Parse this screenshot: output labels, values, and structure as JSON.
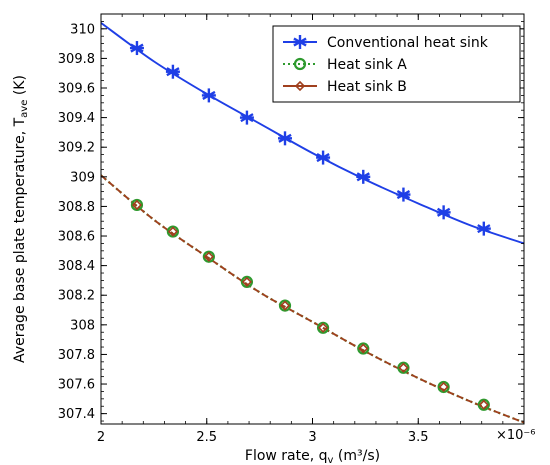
{
  "chart_data": {
    "type": "line",
    "xlabel": "Flow rate, q",
    "xlabel_sub": "v",
    "xlabel_units": " (m³/s)",
    "ylabel": "Average base plate temperature, T",
    "ylabel_sub": "ave",
    "ylabel_units": " (K)",
    "x_exponent_label": "×10⁻⁶",
    "xlim": [
      2.0,
      4.0
    ],
    "ylim": [
      307.33,
      310.1
    ],
    "x_ticks": [
      "2",
      "2.5",
      "3",
      "3.5"
    ],
    "x_tick_values": [
      2.0,
      2.5,
      3.0,
      3.5
    ],
    "y_ticks": [
      "307.4",
      "307.6",
      "307.8",
      "308",
      "308.2",
      "308.4",
      "308.6",
      "308.8",
      "309",
      "309.2",
      "309.4",
      "309.6",
      "309.8",
      "310"
    ],
    "y_tick_values": [
      307.4,
      307.6,
      307.8,
      308.0,
      308.2,
      308.4,
      308.6,
      308.8,
      309.0,
      309.2,
      309.4,
      309.6,
      309.8,
      310.0
    ],
    "grid": false,
    "legend_position": "top-right",
    "series": [
      {
        "name": "Conventional heat sink",
        "color": "#1f3fe6",
        "line": "solid",
        "marker": "asterisk",
        "x": [
          2.0,
          2.25,
          2.5,
          2.75,
          3.0,
          3.25,
          3.5,
          3.75,
          4.0
        ],
        "y": [
          310.04,
          309.78,
          309.56,
          309.36,
          309.16,
          308.98,
          308.82,
          308.67,
          308.55
        ],
        "marker_x": [
          2.17,
          2.34,
          2.51,
          2.69,
          2.87,
          3.05,
          3.24,
          3.43,
          3.62,
          3.81
        ],
        "marker_y": [
          309.87,
          309.71,
          309.55,
          309.4,
          309.26,
          309.13,
          309.0,
          308.88,
          308.76,
          308.65
        ]
      },
      {
        "name": "Heat sink A",
        "color": "#2e9a2e",
        "line": "dotted",
        "marker": "circle",
        "x": [
          2.0,
          2.25,
          2.5,
          2.75,
          3.0,
          3.25,
          3.5,
          3.75,
          4.0
        ],
        "y": [
          309.01,
          308.71,
          308.46,
          308.22,
          308.02,
          307.82,
          307.64,
          307.48,
          307.34
        ],
        "marker_x": [
          2.17,
          2.34,
          2.51,
          2.69,
          2.87,
          3.05,
          3.24,
          3.43,
          3.62,
          3.81
        ],
        "marker_y": [
          308.81,
          308.63,
          308.46,
          308.29,
          308.13,
          307.98,
          307.84,
          307.71,
          307.58,
          307.46
        ]
      },
      {
        "name": "Heat sink B",
        "color": "#a0401e",
        "line": "solid",
        "marker": "diamond",
        "x": [
          2.0,
          2.25,
          2.5,
          2.75,
          3.0,
          3.25,
          3.5,
          3.75,
          4.0
        ],
        "y": [
          309.01,
          308.71,
          308.46,
          308.22,
          308.02,
          307.82,
          307.64,
          307.48,
          307.34
        ],
        "marker_x": [
          2.17,
          2.34,
          2.51,
          2.69,
          2.87,
          3.05,
          3.24,
          3.43,
          3.62,
          3.81
        ],
        "marker_y": [
          308.81,
          308.63,
          308.46,
          308.29,
          308.13,
          307.98,
          307.84,
          307.71,
          307.58,
          307.46
        ]
      }
    ]
  }
}
